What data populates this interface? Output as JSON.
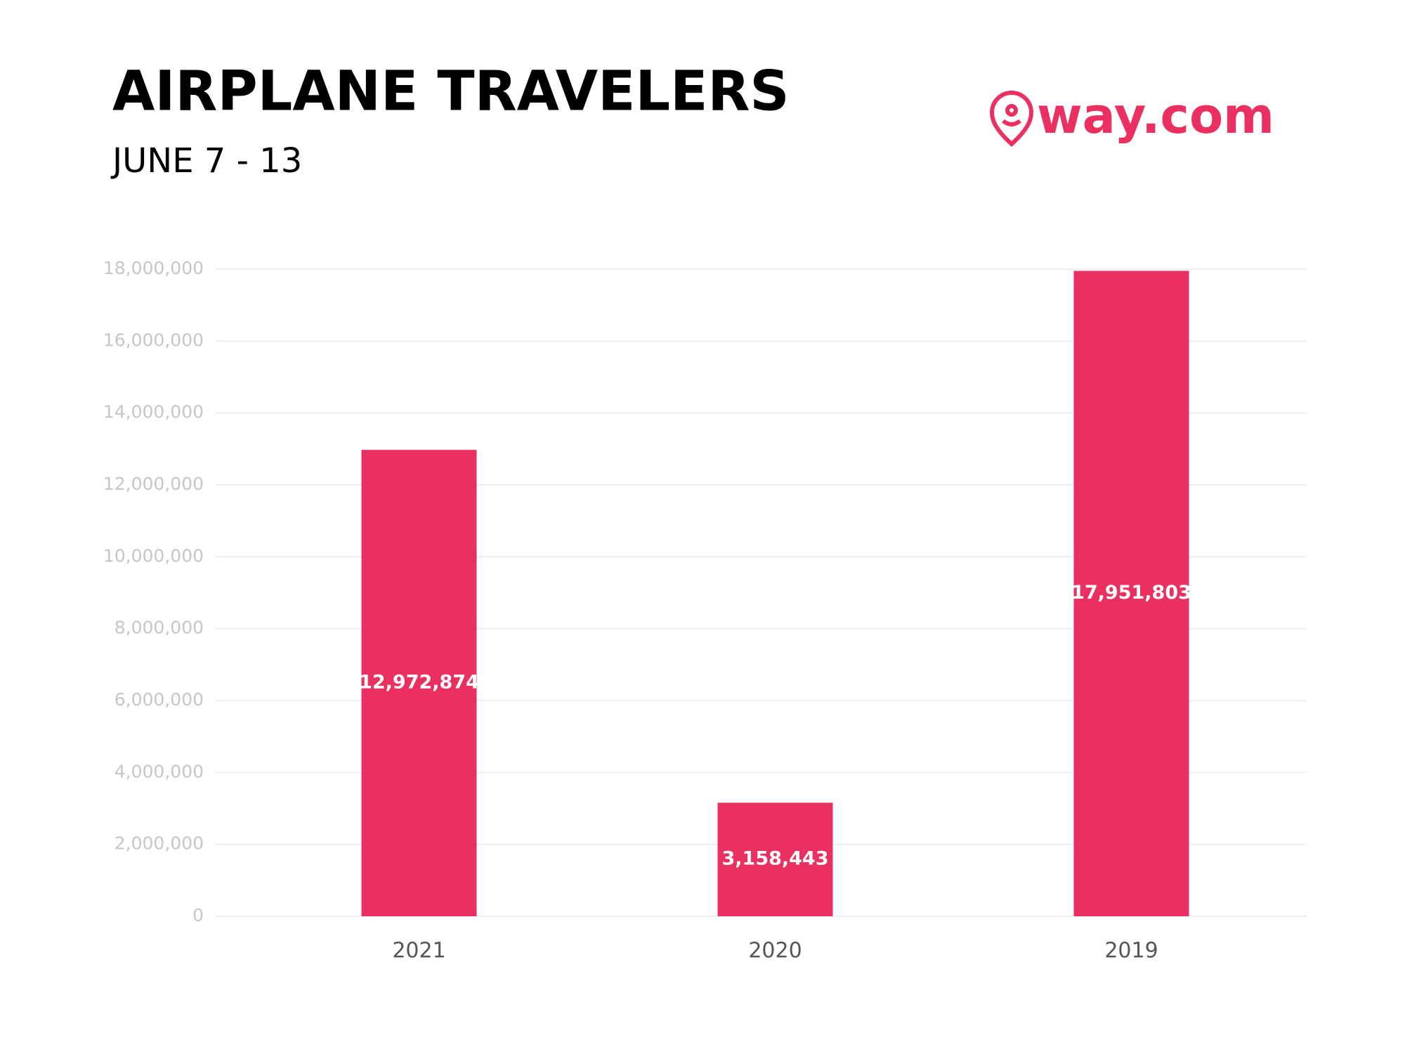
{
  "chart_data": {
    "type": "bar",
    "title": "AIRPLANE TRAVELERS",
    "subtitle": "JUNE 7 - 13",
    "logo": "way.com",
    "categories": [
      "2021",
      "2020",
      "2019"
    ],
    "values": [
      12972874,
      3158443,
      17951803
    ],
    "value_labels": [
      "12,972,874",
      "3,158,443",
      "17,951,803"
    ],
    "color": "#ea3060",
    "ylim": [
      0,
      18000000
    ],
    "yticks": [
      0,
      {
        "value": 2000000,
        "label": "2,000,000"
      },
      {
        "value": 4000000,
        "label": "4,000,000"
      },
      {
        "value": 6000000,
        "label": "6,000,000"
      },
      {
        "value": 8000000,
        "label": "8,000,000"
      },
      {
        "value": 10000000,
        "label": "10,000,000"
      },
      {
        "value": 12000000,
        "label": "12,000,000"
      },
      {
        "value": 14000000,
        "label": "14,000,000"
      },
      {
        "value": 16000000,
        "label": "16,000,000"
      },
      {
        "value": 18000000,
        "label": "18,000,000"
      }
    ],
    "grid": true
  }
}
